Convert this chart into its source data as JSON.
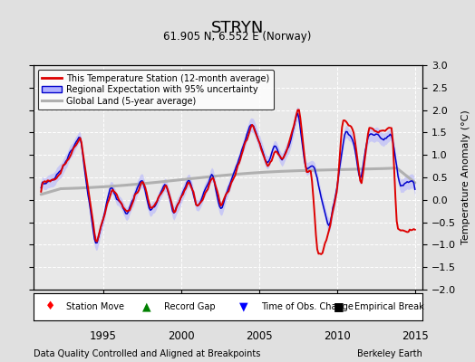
{
  "title": "STRYN",
  "subtitle": "61.905 N, 6.552 E (Norway)",
  "ylabel": "Temperature Anomaly (°C)",
  "xlim": [
    1990.5,
    2015.5
  ],
  "ylim": [
    -2.0,
    3.0
  ],
  "yticks": [
    -2,
    -1.5,
    -1,
    -0.5,
    0,
    0.5,
    1,
    1.5,
    2,
    2.5,
    3
  ],
  "xticks": [
    1995,
    2000,
    2005,
    2010,
    2015
  ],
  "bg_color": "#e0e0e0",
  "plot_bg": "#e8e8e8",
  "grid_color": "#ffffff",
  "station_color": "#dd0000",
  "regional_color": "#0000cc",
  "regional_fill": "#b0b0ff",
  "global_color": "#b0b0b0",
  "footer_left": "Data Quality Controlled and Aligned at Breakpoints",
  "footer_right": "Berkeley Earth",
  "legend_station": "This Temperature Station (12-month average)",
  "legend_regional": "Regional Expectation with 95% uncertainty",
  "legend_global": "Global Land (5-year average)"
}
